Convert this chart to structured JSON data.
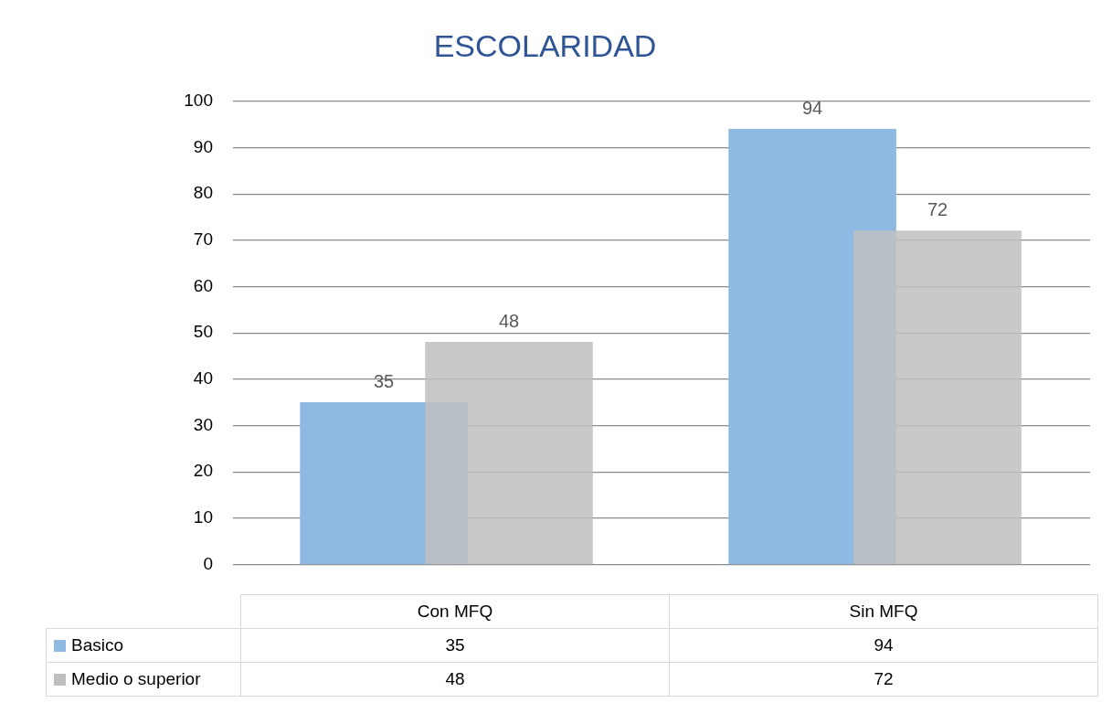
{
  "chart_data": {
    "type": "bar",
    "title": "ESCOLARIDAD",
    "categories": [
      "Con MFQ",
      "Sin MFQ"
    ],
    "series": [
      {
        "name": "Basico",
        "color": "#8db9e2",
        "values": [
          35,
          94
        ]
      },
      {
        "name": "Medio o superior",
        "color": "#bfbfbf",
        "values": [
          48,
          72
        ]
      }
    ],
    "ylim": [
      0,
      100
    ],
    "yticks": [
      0,
      10,
      20,
      30,
      40,
      50,
      60,
      70,
      80,
      90,
      100
    ],
    "grid": "y",
    "annotations": [
      "35",
      "94",
      "48",
      "72"
    ],
    "data_labels": true,
    "legend": "bottom"
  }
}
